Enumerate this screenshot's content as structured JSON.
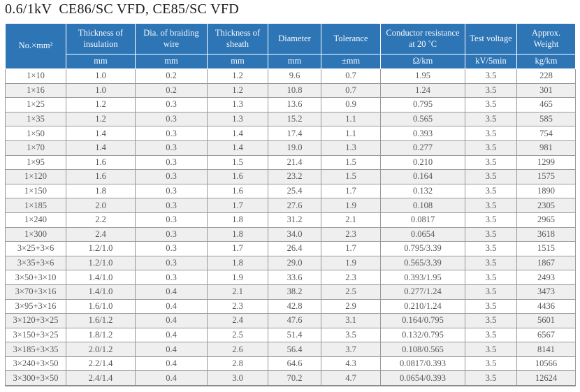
{
  "page_title": "0.6/1kV  CE86/SC VFD, CE85/SC VFD",
  "colors": {
    "header_bg": "#2e75b6",
    "header_text": "#f6fafd",
    "row_alt_bg": "#efefef",
    "body_text": "#5a5a5a",
    "grid_line": "#999999",
    "title_text": "#1a1a1a"
  },
  "table": {
    "column_keys": [
      "size",
      "insulation-thickness",
      "braiding-wire-dia",
      "sheath-thickness",
      "diameter",
      "tolerance",
      "conductor-resistance",
      "test-voltage",
      "approx-weight"
    ],
    "columns": [
      {
        "label": "No.×mm²",
        "unit": ""
      },
      {
        "label": "Thickness of insulation",
        "unit": "mm"
      },
      {
        "label": "Dia. of braiding wire",
        "unit": "mm"
      },
      {
        "label": "Thickness of sheath",
        "unit": "mm"
      },
      {
        "label": "Diameter",
        "unit": "mm"
      },
      {
        "label": "Tolerance",
        "unit": "±mm"
      },
      {
        "label": "Conductor resistance at 20 ˚C",
        "unit": "Ω/km"
      },
      {
        "label": "Test voltage",
        "unit": "kV/5min"
      },
      {
        "label": "Approx. Weight",
        "unit": "kg/km"
      }
    ],
    "rows": [
      [
        "1×10",
        "1.0",
        "0.2",
        "1.2",
        "9.6",
        "0.7",
        "1.95",
        "3.5",
        "228"
      ],
      [
        "1×16",
        "1.0",
        "0.2",
        "1.2",
        "10.8",
        "0.7",
        "1.24",
        "3.5",
        "301"
      ],
      [
        "1×25",
        "1.2",
        "0.3",
        "1.3",
        "13.6",
        "0.9",
        "0.795",
        "3.5",
        "465"
      ],
      [
        "1×35",
        "1.2",
        "0.3",
        "1.3",
        "15.2",
        "1.1",
        "0.565",
        "3.5",
        "585"
      ],
      [
        "1×50",
        "1.4",
        "0.3",
        "1.4",
        "17.4",
        "1.1",
        "0.393",
        "3.5",
        "754"
      ],
      [
        "1×70",
        "1.4",
        "0.3",
        "1.4",
        "19.0",
        "1.3",
        "0.277",
        "3.5",
        "981"
      ],
      [
        "1×95",
        "1.6",
        "0.3",
        "1.5",
        "21.4",
        "1.5",
        "0.210",
        "3.5",
        "1299"
      ],
      [
        "1×120",
        "1.6",
        "0.3",
        "1.6",
        "23.2",
        "1.5",
        "0.164",
        "3.5",
        "1575"
      ],
      [
        "1×150",
        "1.8",
        "0.3",
        "1.6",
        "25.4",
        "1.7",
        "0.132",
        "3.5",
        "1890"
      ],
      [
        "1×185",
        "2.0",
        "0.3",
        "1.7",
        "27.6",
        "1.9",
        "0.108",
        "3.5",
        "2305"
      ],
      [
        "1×240",
        "2.2",
        "0.3",
        "1.8",
        "31.2",
        "2.1",
        "0.0817",
        "3.5",
        "2965"
      ],
      [
        "1×300",
        "2.4",
        "0.3",
        "1.8",
        "34.0",
        "2.3",
        "0.0654",
        "3.5",
        "3618"
      ],
      [
        "3×25+3×6",
        "1.2/1.0",
        "0.3",
        "1.7",
        "26.4",
        "1.7",
        "0.795/3.39",
        "3.5",
        "1515"
      ],
      [
        "3×35+3×6",
        "1.2/1.0",
        "0.3",
        "1.8",
        "29.0",
        "1.9",
        "0.565/3.39",
        "3.5",
        "1867"
      ],
      [
        "3×50+3×10",
        "1.4/1.0",
        "0.3",
        "1.9",
        "33.6",
        "2.3",
        "0.393/1.95",
        "3.5",
        "2493"
      ],
      [
        "3×70+3×16",
        "1.4/1.0",
        "0.4",
        "2.1",
        "38.2",
        "2.5",
        "0.277/1.24",
        "3.5",
        "3473"
      ],
      [
        "3×95+3×16",
        "1.6/1.0",
        "0.4",
        "2.3",
        "42.8",
        "2.9",
        "0.210/1.24",
        "3.5",
        "4436"
      ],
      [
        "3×120+3×25",
        "1.6/1.2",
        "0.4",
        "2.4",
        "47.6",
        "3.1",
        "0.164/0.795",
        "3.5",
        "5601"
      ],
      [
        "3×150+3×25",
        "1.8/1.2",
        "0.4",
        "2.5",
        "51.4",
        "3.5",
        "0.132/0.795",
        "3.5",
        "6567"
      ],
      [
        "3×185+3×35",
        "2.0/1.2",
        "0.4",
        "2.6",
        "56.4",
        "3.7",
        "0.108/0.565",
        "3.5",
        "8141"
      ],
      [
        "3×240+3×50",
        "2.2/1.4",
        "0.4",
        "2.8",
        "64.6",
        "4.3",
        "0.0817/0.393",
        "3.5",
        "10566"
      ],
      [
        "3×300+3×50",
        "2.4/1.4",
        "0.4",
        "3.0",
        "70.2",
        "4.7",
        "0.0654/0.393",
        "3.5",
        "12624"
      ]
    ]
  }
}
